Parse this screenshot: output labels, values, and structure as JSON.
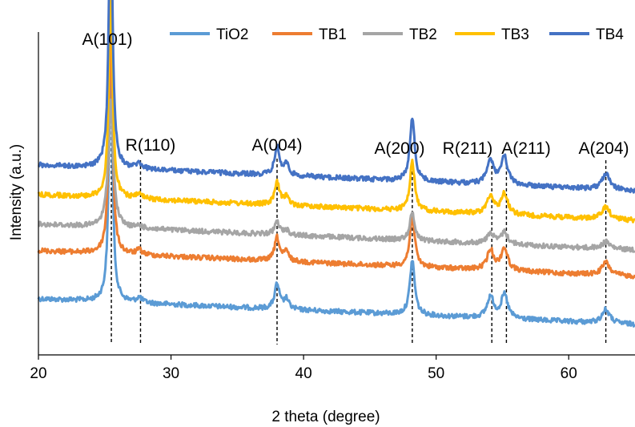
{
  "chart_data": {
    "type": "line",
    "title": "",
    "xlabel": "2 theta (degree)",
    "ylabel": "Intensity (a.u.)",
    "xlim": [
      20,
      65
    ],
    "xticks": [
      20,
      30,
      40,
      50,
      60
    ],
    "y_ticks_shown": false,
    "grid": false,
    "legend_position": "top",
    "colors": {
      "TiO2": "#5B9BD5",
      "TB1": "#ED7D31",
      "TB2": "#A5A5A5",
      "TB3": "#FFC000",
      "TB4": "#4472C4"
    },
    "series": [
      {
        "name": "TiO2",
        "offset": 0
      },
      {
        "name": "TB1",
        "offset": 1
      },
      {
        "name": "TB2",
        "offset": 2
      },
      {
        "name": "TB3",
        "offset": 3
      },
      {
        "name": "TB4",
        "offset": 4
      }
    ],
    "annotations": [
      {
        "label": "A(101)",
        "x": 25.5
      },
      {
        "label": "R(110)",
        "x": 27.7
      },
      {
        "label": "A(004)",
        "x": 38.0
      },
      {
        "label": "A(200)",
        "x": 48.2
      },
      {
        "label": "R(211)",
        "x": 54.2
      },
      {
        "label": "A(211)",
        "x": 55.3
      },
      {
        "label": "A(204)",
        "x": 62.8
      }
    ]
  }
}
